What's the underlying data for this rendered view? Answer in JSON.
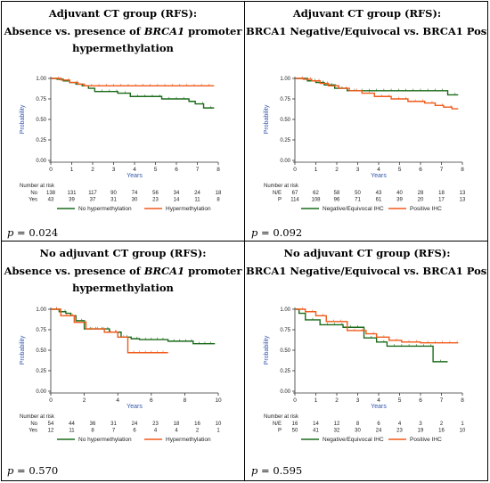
{
  "panels": [
    {
      "title1": "Adjuvant CT group (RFS):",
      "title2_pre": "Absence vs. presence of ",
      "title2_gene": "BRCA1",
      "title2_post": " promoter",
      "title3": "hypermethylation",
      "p_label": "p",
      "p_value": " = 0.024"
    },
    {
      "title1": "Adjuvant CT group (RFS):",
      "title2_pre": "BRCA1 Negative/Equivocal vs. BRCA1 Positive IHC",
      "title2_gene": "",
      "title2_post": "",
      "title3": "",
      "p_label": "p",
      "p_value": " = 0.092"
    },
    {
      "title1": "No adjuvant CT group (RFS):",
      "title2_pre": "Absence vs. presence of ",
      "title2_gene": "BRCA1",
      "title2_post": " promoter",
      "title3": "hypermethylation",
      "p_label": "p",
      "p_value": " = 0.570"
    },
    {
      "title1": "No adjuvant CT group (RFS):",
      "title2_pre": "BRCA1 Negative/Equivocal vs. BRCA1 Positive IHC",
      "title2_gene": "",
      "title2_post": "",
      "title3": "",
      "p_label": "p",
      "p_value": " = 0.595"
    }
  ],
  "colors": {
    "green": "#1a6b1a",
    "orange": "#f05a1a",
    "axis": "#333333"
  },
  "chart_data": [
    {
      "type": "line",
      "xlabel": "Years",
      "ylabel": "Probability",
      "xlim": [
        0,
        8
      ],
      "ylim": [
        0,
        1
      ],
      "xticks": [
        0,
        1,
        2,
        3,
        4,
        5,
        6,
        7,
        8
      ],
      "yticks": [
        0.0,
        0.25,
        0.5,
        0.75,
        1.0
      ],
      "ytick_labels": [
        "0.00",
        "0.25",
        "0.50",
        "0.75",
        "1.00"
      ],
      "series": [
        {
          "name": "No hypermethylation",
          "color": "#1a6b1a",
          "x": [
            0,
            0.3,
            0.6,
            0.9,
            1.2,
            1.5,
            1.8,
            2.1,
            3.2,
            3.8,
            5.3,
            6.6,
            6.9,
            7.3,
            7.8
          ],
          "y": [
            1.0,
            0.99,
            0.97,
            0.95,
            0.93,
            0.91,
            0.88,
            0.84,
            0.82,
            0.78,
            0.75,
            0.72,
            0.69,
            0.64,
            0.64
          ]
        },
        {
          "name": "Hypermethylation",
          "color": "#f05a1a",
          "x": [
            0,
            0.5,
            0.9,
            1.3,
            1.6,
            7.8
          ],
          "y": [
            1.0,
            0.98,
            0.95,
            0.93,
            0.91,
            0.91
          ]
        }
      ],
      "risk_title": "Number at risk",
      "risk_rows": [
        {
          "label": "No",
          "values": [
            "138",
            "131",
            "117",
            "90",
            "74",
            "56",
            "34",
            "24",
            "18"
          ]
        },
        {
          "label": "Yes",
          "values": [
            "43",
            "39",
            "37",
            "31",
            "30",
            "23",
            "14",
            "11",
            "8"
          ]
        }
      ]
    },
    {
      "type": "line",
      "xlabel": "Years",
      "ylabel": "Probability",
      "xlim": [
        0,
        8
      ],
      "ylim": [
        0,
        1
      ],
      "xticks": [
        0,
        1,
        2,
        3,
        4,
        5,
        6,
        7,
        8
      ],
      "yticks": [
        0.0,
        0.25,
        0.5,
        0.75,
        1.0
      ],
      "ytick_labels": [
        "0.00",
        "0.25",
        "0.50",
        "0.75",
        "1.00"
      ],
      "series": [
        {
          "name": "Negative/Equivocal IHC",
          "color": "#1a6b1a",
          "x": [
            0,
            0.6,
            1.0,
            1.4,
            1.9,
            2.5,
            7.3,
            7.8
          ],
          "y": [
            1.0,
            0.97,
            0.95,
            0.92,
            0.88,
            0.85,
            0.8,
            0.8
          ]
        },
        {
          "name": "Positive IHC",
          "color": "#f05a1a",
          "x": [
            0,
            0.4,
            0.8,
            1.2,
            1.6,
            2.1,
            2.6,
            3.2,
            3.8,
            4.6,
            5.4,
            6.2,
            6.7,
            7.1,
            7.5,
            7.8
          ],
          "y": [
            1.0,
            0.99,
            0.97,
            0.94,
            0.91,
            0.88,
            0.85,
            0.82,
            0.78,
            0.75,
            0.72,
            0.7,
            0.67,
            0.65,
            0.63,
            0.63
          ]
        }
      ],
      "risk_title": "Number at risk",
      "risk_rows": [
        {
          "label": "N/E",
          "values": [
            "67",
            "62",
            "58",
            "50",
            "43",
            "40",
            "28",
            "18",
            "13"
          ]
        },
        {
          "label": "P",
          "values": [
            "114",
            "108",
            "96",
            "71",
            "61",
            "39",
            "20",
            "17",
            "13"
          ]
        }
      ]
    },
    {
      "type": "line",
      "xlabel": "Years",
      "ylabel": "Probability",
      "xlim": [
        0,
        10
      ],
      "ylim": [
        0,
        1
      ],
      "xticks": [
        0,
        2,
        4,
        6,
        8,
        10
      ],
      "yticks": [
        0.0,
        0.25,
        0.5,
        0.75,
        1.0
      ],
      "ytick_labels": [
        "0.00",
        "0.25",
        "0.50",
        "0.75",
        "1.00"
      ],
      "series": [
        {
          "name": "No hypermethylation",
          "color": "#1a6b1a",
          "x": [
            0,
            0.5,
            0.9,
            1.2,
            1.5,
            2.0,
            3.5,
            4.2,
            4.8,
            5.3,
            7.0,
            8.5,
            9.8
          ],
          "y": [
            1.0,
            0.97,
            0.95,
            0.92,
            0.86,
            0.76,
            0.72,
            0.66,
            0.64,
            0.63,
            0.61,
            0.58,
            0.58
          ]
        },
        {
          "name": "Hypermethylation",
          "color": "#f05a1a",
          "x": [
            0,
            0.6,
            1.4,
            2.1,
            3.2,
            4.0,
            4.6,
            7.0
          ],
          "y": [
            1.0,
            0.92,
            0.84,
            0.76,
            0.72,
            0.66,
            0.47,
            0.47
          ]
        }
      ],
      "risk_title": "Number at risk",
      "risk_rows": [
        {
          "label": "No",
          "values": [
            "54",
            "44",
            "36",
            "31",
            "24",
            "23",
            "18",
            "16",
            "10"
          ]
        },
        {
          "label": "Yes",
          "values": [
            "12",
            "11",
            "8",
            "7",
            "6",
            "4",
            "4",
            "2",
            "1"
          ]
        }
      ]
    },
    {
      "type": "line",
      "xlabel": "Years",
      "ylabel": "Probability",
      "xlim": [
        0,
        8
      ],
      "ylim": [
        0,
        1
      ],
      "xticks": [
        0,
        1,
        2,
        3,
        4,
        5,
        6,
        7,
        8
      ],
      "yticks": [
        0.0,
        0.25,
        0.5,
        0.75,
        1.0
      ],
      "ytick_labels": [
        "0.00",
        "0.25",
        "0.50",
        "0.75",
        "1.00"
      ],
      "series": [
        {
          "name": "Negative/Equivocal IHC",
          "color": "#1a6b1a",
          "x": [
            0,
            0.2,
            0.5,
            1.2,
            2.3,
            3.3,
            3.9,
            4.4,
            6.6,
            7.3
          ],
          "y": [
            1.0,
            0.95,
            0.87,
            0.81,
            0.78,
            0.65,
            0.6,
            0.55,
            0.36,
            0.36
          ]
        },
        {
          "name": "Positive IHC",
          "color": "#f05a1a",
          "x": [
            0,
            0.5,
            1.0,
            1.5,
            2.5,
            3.4,
            3.9,
            4.5,
            5.1,
            6.0,
            7.8
          ],
          "y": [
            1.0,
            0.97,
            0.92,
            0.85,
            0.74,
            0.7,
            0.66,
            0.62,
            0.6,
            0.59,
            0.59
          ]
        }
      ],
      "risk_title": "Number at risk",
      "risk_rows": [
        {
          "label": "N/E",
          "values": [
            "16",
            "14",
            "12",
            "8",
            "6",
            "4",
            "3",
            "2",
            "1"
          ]
        },
        {
          "label": "P",
          "values": [
            "50",
            "41",
            "32",
            "30",
            "24",
            "23",
            "19",
            "16",
            "10"
          ]
        }
      ]
    }
  ]
}
